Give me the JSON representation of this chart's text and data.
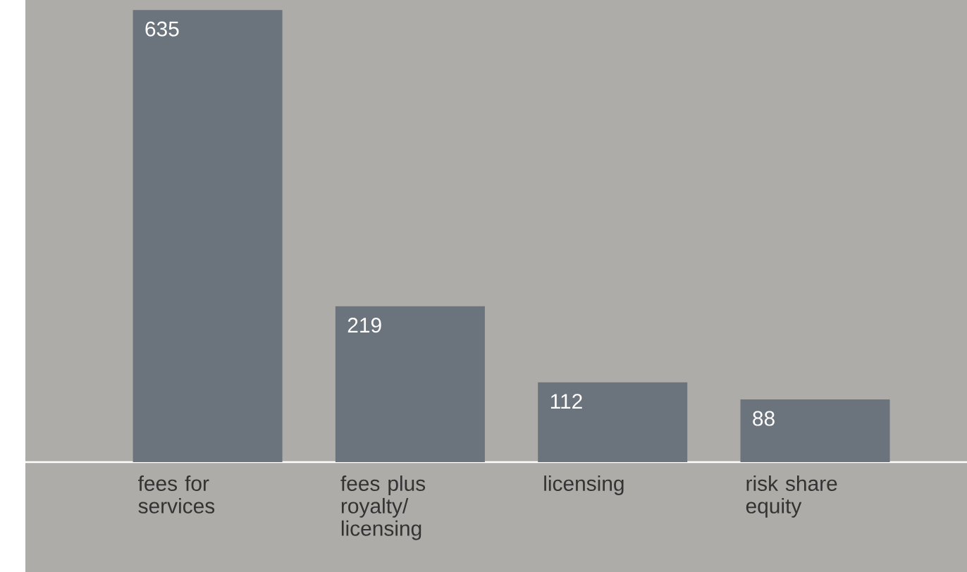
{
  "chart_data": {
    "type": "bar",
    "categories": [
      "fees for services",
      "fees plus royalty/ licensing",
      "licensing",
      "risk share equity"
    ],
    "values": [
      635,
      219,
      112,
      88
    ],
    "color": "#6b737c",
    "ylim": [
      0,
      649
    ],
    "data_labels": true
  }
}
